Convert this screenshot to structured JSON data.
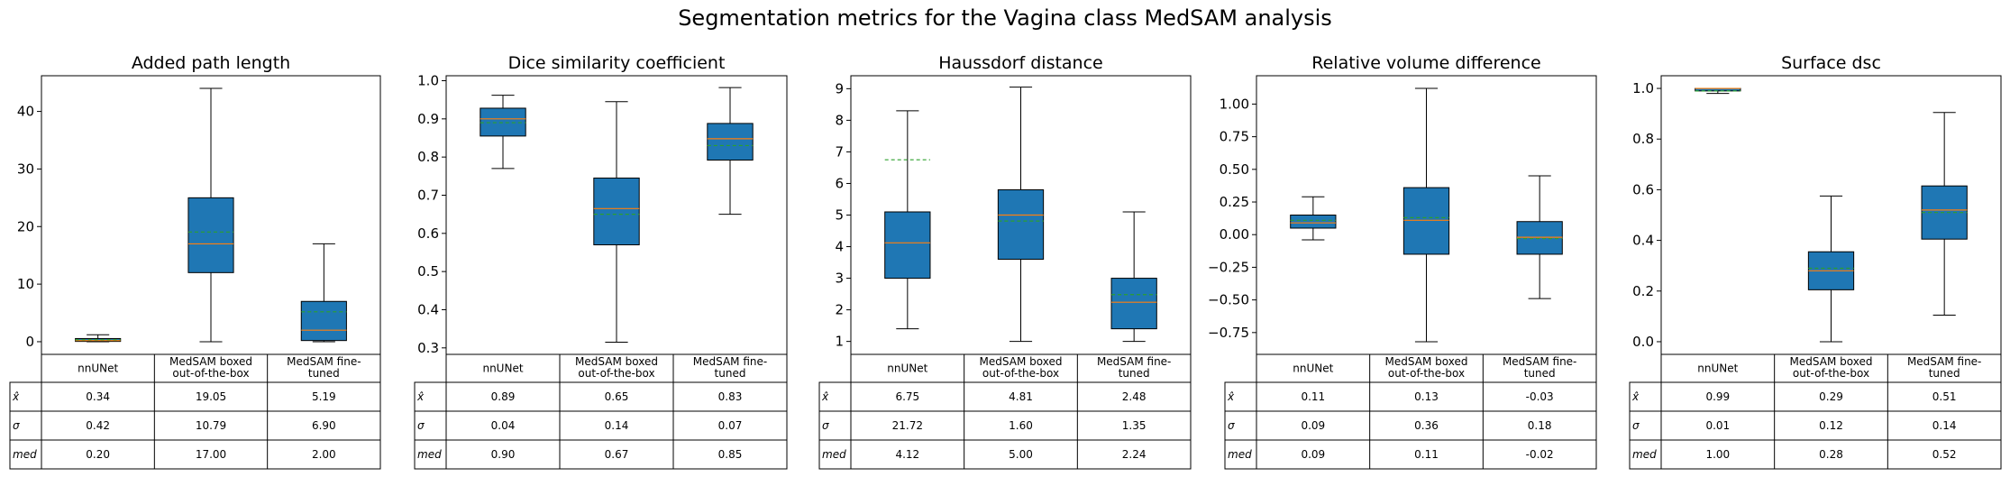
{
  "suptitle": "Segmentation metrics for the Vagina class MedSAM analysis",
  "chart_data": [
    {
      "type": "box",
      "title": "Added path length",
      "categories": [
        "nnUNet",
        "MedSAM boxed out-of-the-box",
        "MedSAM fine-tuned"
      ],
      "category_lines": [
        [
          "nnUNet"
        ],
        [
          "MedSAM boxed",
          "out-of-the-box"
        ],
        [
          "MedSAM fine-",
          "tuned"
        ]
      ],
      "ylim": [
        -2.2,
        46.2
      ],
      "yticks": [
        0,
        10,
        20,
        30,
        40
      ],
      "yticklabels": [
        "0",
        "10",
        "20",
        "30",
        "40"
      ],
      "boxes": [
        {
          "whislo": 0,
          "q1": 0.05,
          "med": 0.2,
          "q3": 0.55,
          "whishi": 1.2,
          "mean": 0.34
        },
        {
          "whislo": 0,
          "q1": 12,
          "med": 17,
          "q3": 25,
          "whishi": 44,
          "mean": 19.05
        },
        {
          "whislo": 0,
          "q1": 0.2,
          "med": 2,
          "q3": 7,
          "whishi": 17,
          "mean": 5.19
        }
      ],
      "table": {
        "row_labels": [
          "x̂",
          "σ",
          "med"
        ],
        "rows": [
          [
            "0.34",
            "19.05",
            "5.19"
          ],
          [
            "0.42",
            "10.79",
            "6.90"
          ],
          [
            "0.20",
            "17.00",
            "2.00"
          ]
        ]
      }
    },
    {
      "type": "box",
      "title": "Dice similarity coefficient",
      "categories": [
        "nnUNet",
        "MedSAM boxed out-of-the-box",
        "MedSAM fine-tuned"
      ],
      "category_lines": [
        [
          "nnUNet"
        ],
        [
          "MedSAM boxed",
          "out-of-the-box"
        ],
        [
          "MedSAM fine-",
          "tuned"
        ]
      ],
      "ylim": [
        0.283,
        1.013
      ],
      "yticks": [
        0.3,
        0.4,
        0.5,
        0.6,
        0.7,
        0.8,
        0.9,
        1.0
      ],
      "yticklabels": [
        "0.3",
        "0.4",
        "0.5",
        "0.6",
        "0.7",
        "0.8",
        "0.9",
        "1.0"
      ],
      "boxes": [
        {
          "whislo": 0.77,
          "q1": 0.855,
          "med": 0.9,
          "q3": 0.928,
          "whishi": 0.962,
          "mean": 0.89
        },
        {
          "whislo": 0.315,
          "q1": 0.57,
          "med": 0.665,
          "q3": 0.745,
          "whishi": 0.945,
          "mean": 0.65
        },
        {
          "whislo": 0.65,
          "q1": 0.792,
          "med": 0.848,
          "q3": 0.888,
          "whishi": 0.982,
          "mean": 0.83
        }
      ],
      "table": {
        "row_labels": [
          "x̂",
          "σ",
          "med"
        ],
        "rows": [
          [
            "0.89",
            "0.65",
            "0.83"
          ],
          [
            "0.04",
            "0.14",
            "0.07"
          ],
          [
            "0.90",
            "0.67",
            "0.85"
          ]
        ]
      }
    },
    {
      "type": "box",
      "title": "Haussdorf distance",
      "categories": [
        "nnUNet",
        "MedSAM boxed out-of-the-box",
        "MedSAM fine-tuned"
      ],
      "category_lines": [
        [
          "nnUNet"
        ],
        [
          "MedSAM boxed",
          "out-of-the-box"
        ],
        [
          "MedSAM fine-",
          "tuned"
        ]
      ],
      "ylim": [
        0.59,
        9.41
      ],
      "yticks": [
        1,
        2,
        3,
        4,
        5,
        6,
        7,
        8,
        9
      ],
      "yticklabels": [
        "1",
        "2",
        "3",
        "4",
        "5",
        "6",
        "7",
        "8",
        "9"
      ],
      "boxes": [
        {
          "whislo": 1.4,
          "q1": 3.0,
          "med": 4.12,
          "q3": 5.1,
          "whishi": 8.3,
          "mean": 6.75
        },
        {
          "whislo": 1.0,
          "q1": 3.6,
          "med": 5.0,
          "q3": 5.8,
          "whishi": 9.05,
          "mean": 4.81
        },
        {
          "whislo": 1.0,
          "q1": 1.4,
          "med": 2.24,
          "q3": 3.0,
          "whishi": 5.1,
          "mean": 2.48
        }
      ],
      "table": {
        "row_labels": [
          "x̂",
          "σ",
          "med"
        ],
        "rows": [
          [
            "6.75",
            "4.81",
            "2.48"
          ],
          [
            "21.72",
            "1.60",
            "1.35"
          ],
          [
            "4.12",
            "5.00",
            "2.24"
          ]
        ]
      }
    },
    {
      "type": "box",
      "title": "Relative volume difference",
      "categories": [
        "nnUNet",
        "MedSAM boxed out-of-the-box",
        "MedSAM fine-tuned"
      ],
      "category_lines": [
        [
          "nnUNet"
        ],
        [
          "MedSAM boxed",
          "out-of-the-box"
        ],
        [
          "MedSAM fine-",
          "tuned"
        ]
      ],
      "ylim": [
        -0.917,
        1.217
      ],
      "yticks": [
        -0.75,
        -0.5,
        -0.25,
        0.0,
        0.25,
        0.5,
        0.75,
        1.0
      ],
      "yticklabels": [
        "−0.75",
        "−0.50",
        "−0.25",
        "0.00",
        "0.25",
        "0.50",
        "0.75",
        "1.00"
      ],
      "boxes": [
        {
          "whislo": -0.04,
          "q1": 0.05,
          "med": 0.09,
          "q3": 0.15,
          "whishi": 0.29,
          "mean": 0.11
        },
        {
          "whislo": -0.82,
          "q1": -0.15,
          "med": 0.11,
          "q3": 0.36,
          "whishi": 1.12,
          "mean": 0.13
        },
        {
          "whislo": -0.49,
          "q1": -0.15,
          "med": -0.02,
          "q3": 0.1,
          "whishi": 0.45,
          "mean": -0.03
        }
      ],
      "table": {
        "row_labels": [
          "x̂",
          "σ",
          "med"
        ],
        "rows": [
          [
            "0.11",
            "0.13",
            "-0.03"
          ],
          [
            "0.09",
            "0.36",
            "0.18"
          ],
          [
            "0.09",
            "0.11",
            "-0.02"
          ]
        ]
      }
    },
    {
      "type": "box",
      "title": "Surface dsc",
      "categories": [
        "nnUNet",
        "MedSAM boxed out-of-the-box",
        "MedSAM fine-tuned"
      ],
      "category_lines": [
        [
          "nnUNet"
        ],
        [
          "MedSAM boxed",
          "out-of-the-box"
        ],
        [
          "MedSAM fine-",
          "tuned"
        ]
      ],
      "ylim": [
        -0.05,
        1.05
      ],
      "yticks": [
        0.0,
        0.2,
        0.4,
        0.6,
        0.8,
        1.0
      ],
      "yticklabels": [
        "0.0",
        "0.2",
        "0.4",
        "0.6",
        "0.8",
        "1.0"
      ],
      "boxes": [
        {
          "whislo": 0.98,
          "q1": 0.99,
          "med": 1.0,
          "q3": 1.0,
          "whishi": 1.0,
          "mean": 0.99
        },
        {
          "whislo": 0.0,
          "q1": 0.205,
          "med": 0.28,
          "q3": 0.355,
          "whishi": 0.575,
          "mean": 0.29
        },
        {
          "whislo": 0.105,
          "q1": 0.405,
          "med": 0.52,
          "q3": 0.615,
          "whishi": 0.905,
          "mean": 0.51
        }
      ],
      "table": {
        "row_labels": [
          "x̂",
          "σ",
          "med"
        ],
        "rows": [
          [
            "0.99",
            "0.29",
            "0.51"
          ],
          [
            "0.01",
            "0.12",
            "0.14"
          ],
          [
            "1.00",
            "0.28",
            "0.52"
          ]
        ]
      }
    }
  ],
  "colors": {
    "box_fill": "#1f77b4",
    "median_line": "#ff7f0e",
    "mean_line": "#2ca02c",
    "edge": "#000000"
  }
}
